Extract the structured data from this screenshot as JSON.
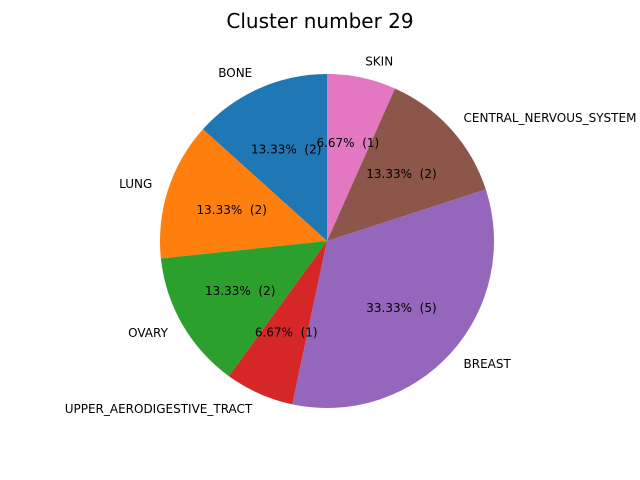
{
  "chart_data": {
    "type": "pie",
    "title": "Cluster number 29",
    "start_angle_deg": 90,
    "direction": "counterclockwise",
    "slices": [
      {
        "label": "BONE",
        "count": 2,
        "percent_label": "13.33%  (2)",
        "color": "#1f77b4"
      },
      {
        "label": "LUNG",
        "count": 2,
        "percent_label": "13.33%  (2)",
        "color": "#ff7f0e"
      },
      {
        "label": "OVARY",
        "count": 2,
        "percent_label": "13.33%  (2)",
        "color": "#2ca02c"
      },
      {
        "label": "UPPER_AERODIGESTIVE_TRACT",
        "count": 1,
        "percent_label": "6.67%  (1)",
        "color": "#d62728"
      },
      {
        "label": "BREAST",
        "count": 5,
        "percent_label": "33.33%  (5)",
        "color": "#9467bd"
      },
      {
        "label": "CENTRAL_NERVOUS_SYSTEM",
        "count": 2,
        "percent_label": "13.33%  (2)",
        "color": "#8c564b"
      },
      {
        "label": "SKIN",
        "count": 1,
        "percent_label": "6.67%  (1)",
        "color": "#e377c2"
      }
    ]
  }
}
